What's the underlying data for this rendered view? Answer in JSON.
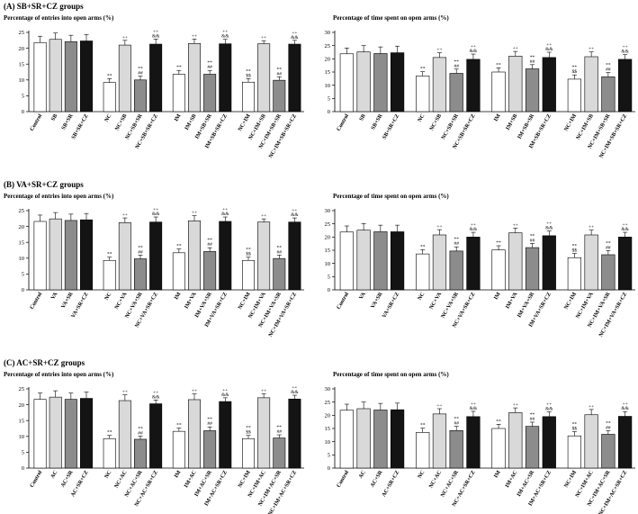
{
  "figure": {
    "sections": [
      {
        "heading": "(A) SB+SR+CZ groups",
        "charts": [
          {
            "title": "Percentage of entries into open arms (%)",
            "ylim": [
              0,
              25
            ],
            "yticks": [
              "0",
              "5",
              "10",
              "15",
              "20",
              "25"
            ],
            "categories": [
              "Control",
              "SB",
              "SB+SR",
              "SB+SR+CZ",
              "NC",
              "NC+SB",
              "NC+SB+SR",
              "NC+SB+SR+CZ",
              "IM",
              "IM+SB",
              "IM+SB+SR",
              "IM+SB+SR+CZ",
              "NC+IM",
              "NC+IM+SB",
              "NC+IM+SB+SR",
              "NC+IM+SB+SR+CZ"
            ],
            "values": [
              21.8,
              22.8,
              22.1,
              22.3,
              9.2,
              21.0,
              10.0,
              21.3,
              11.8,
              21.5,
              11.8,
              21.4,
              9.3,
              21.4,
              9.9,
              21.3
            ],
            "errors": [
              2.0,
              2.0,
              2.0,
              2.0,
              1.2,
              1.5,
              1.2,
              1.6,
              1.2,
              1.4,
              1.2,
              1.4,
              1.1,
              1.0,
              1.1,
              1.2
            ],
            "annotations": [
              "",
              "",
              "",
              "",
              "**",
              "++",
              "**\n##",
              "++\n&&",
              "**",
              "++",
              "**\n##",
              "++\n&&",
              "**\n$$",
              "++",
              "**\n##",
              "++\n&&"
            ]
          },
          {
            "title": "Percentage of time spent on open arms (%)",
            "ylim": [
              0,
              30
            ],
            "yticks": [
              "0",
              "5",
              "10",
              "15",
              "20",
              "25",
              "30"
            ],
            "categories": [
              "Control",
              "SB",
              "SB+SR",
              "SB+SR+CZ",
              "NC",
              "NC+SB",
              "NC+SB+SR",
              "NC+SB+SR+CZ",
              "IM",
              "IM+SB",
              "IM+SB+SR",
              "IM+SB+SR+CZ",
              "NC+IM",
              "NC+IM+SB",
              "NC+IM+SB+SR",
              "NC+IM+SB+SR+CZ"
            ],
            "values": [
              21.9,
              22.6,
              22.0,
              22.3,
              13.5,
              20.5,
              14.5,
              19.8,
              15.0,
              21.0,
              16.2,
              20.5,
              12.3,
              20.8,
              13.2,
              19.8
            ],
            "errors": [
              2.2,
              2.4,
              2.5,
              2.5,
              1.6,
              1.8,
              1.6,
              2.0,
              1.6,
              1.8,
              1.6,
              2.0,
              1.6,
              1.8,
              1.6,
              1.8
            ],
            "annotations": [
              "",
              "",
              "",
              "",
              "**",
              "++",
              "**\n##",
              "++\n&&",
              "**",
              "++",
              "**\n##",
              "++\n&&",
              "**\n$$",
              "++",
              "**\n##",
              "++\n&&"
            ]
          }
        ]
      },
      {
        "heading": "(B) VA+SR+CZ groups",
        "charts": [
          {
            "title": "Percentage of entries into open arms (%)",
            "ylim": [
              0,
              25
            ],
            "yticks": [
              "0",
              "5",
              "10",
              "15",
              "20",
              "25"
            ],
            "categories": [
              "Control",
              "VA",
              "VA+SR",
              "VA+SR+CZ",
              "NC",
              "NC+VA",
              "NC+VA+SR",
              "NC+VA+SR+CZ",
              "IM",
              "IM+VA",
              "IM+VA+SR",
              "IM+VA+SR+CZ",
              "NC+IM",
              "NC+IM+VA",
              "NC+IM+VA+SR",
              "NC+IM+VA+SR+CZ"
            ],
            "values": [
              21.6,
              22.4,
              21.9,
              22.1,
              9.3,
              21.2,
              9.8,
              21.4,
              11.7,
              21.8,
              12.1,
              21.6,
              9.3,
              21.4,
              9.9,
              21.4
            ],
            "errors": [
              2.0,
              2.0,
              2.0,
              2.0,
              1.0,
              1.5,
              1.2,
              1.6,
              1.2,
              1.6,
              1.2,
              1.4,
              1.0,
              1.0,
              1.1,
              1.3
            ],
            "annotations": [
              "",
              "",
              "",
              "",
              "**",
              "++",
              "**\n##",
              "++\n&&",
              "**",
              "++",
              "**\n##",
              "++\n&&",
              "**\n$$",
              "++",
              "**\n##",
              "++\n&&"
            ]
          },
          {
            "title": "Percentage of time spent on open arms (%)",
            "ylim": [
              0,
              30
            ],
            "yticks": [
              "0",
              "5",
              "10",
              "15",
              "20",
              "25",
              "30"
            ],
            "categories": [
              "Control",
              "VA",
              "VA+SR",
              "VA+SR+CZ",
              "NC",
              "NC+VA",
              "NC+VA+SR",
              "NC+VA+SR+CZ",
              "IM",
              "IM+VA",
              "IM+VA+SR",
              "IM+VA+SR+CZ",
              "NC+IM",
              "NC+IM+VA",
              "NC+IM+VA+SR",
              "NC+IM+VA+SR+CZ"
            ],
            "values": [
              21.9,
              22.6,
              22.0,
              22.0,
              13.6,
              20.8,
              14.7,
              20.0,
              15.1,
              21.6,
              16.0,
              20.5,
              12.2,
              20.8,
              13.3,
              20.0
            ],
            "errors": [
              2.3,
              2.5,
              2.5,
              2.5,
              1.6,
              2.0,
              1.6,
              1.8,
              1.6,
              1.8,
              1.6,
              1.8,
              1.6,
              1.8,
              1.6,
              1.8
            ],
            "annotations": [
              "",
              "",
              "",
              "",
              "**",
              "++",
              "**\n##",
              "++\n&&",
              "**",
              "++",
              "**\n##",
              "++\n&&",
              "**\n$$",
              "++",
              "**\n##",
              "++\n&&"
            ]
          }
        ]
      },
      {
        "heading": "(C) AC+SR+CZ groups",
        "charts": [
          {
            "title": "Percentage of entries into open arms (%)",
            "ylim": [
              0,
              25
            ],
            "yticks": [
              "0",
              "5",
              "10",
              "15",
              "20",
              "25"
            ],
            "categories": [
              "Control",
              "AC",
              "AC+SR",
              "AC+SR+CZ",
              "NC",
              "NC+AC",
              "NC+AC+SR",
              "NC+AC+SR+CZ",
              "IM",
              "IM+AC",
              "IM+AC+SR",
              "IM+AC+SR+CZ",
              "NC+IM",
              "NC+IM+AC",
              "NC+IM+AC+SR",
              "NC+IM+AC+SR+CZ"
            ],
            "values": [
              21.7,
              22.4,
              21.7,
              22.0,
              9.3,
              21.3,
              9.1,
              20.3,
              11.6,
              21.6,
              11.8,
              21.0,
              9.3,
              22.2,
              9.5,
              21.8
            ],
            "errors": [
              2.0,
              2.0,
              2.0,
              2.0,
              1.0,
              1.8,
              1.0,
              1.2,
              1.0,
              1.8,
              1.2,
              1.2,
              1.0,
              1.2,
              1.0,
              1.2
            ],
            "annotations": [
              "",
              "",
              "",
              "",
              "**",
              "++",
              "**\n##",
              "++\n&&",
              "**",
              "++",
              "**\n##",
              "++\n&&",
              "**\n$$",
              "++",
              "**\n##",
              "++\n&&"
            ]
          },
          {
            "title": "Percentage of time spent on open arms (%)",
            "ylim": [
              0,
              30
            ],
            "yticks": [
              "0",
              "5",
              "10",
              "15",
              "20",
              "25",
              "30"
            ],
            "categories": [
              "Control",
              "AC",
              "AC+SR",
              "AC+SR+CZ",
              "NC",
              "NC+AC",
              "NC+AC+SR",
              "NC+AC+SR+CZ",
              "IM",
              "IM+AC",
              "IM+AC+SR",
              "IM+AC+SR+CZ",
              "NC+IM",
              "NC+IM+AC",
              "NC+IM+AC+SR",
              "NC+IM+AC+SR+CZ"
            ],
            "values": [
              21.9,
              22.5,
              22.0,
              22.1,
              13.5,
              20.5,
              14.2,
              19.5,
              15.0,
              21.0,
              15.8,
              19.5,
              12.2,
              20.2,
              12.8,
              19.6
            ],
            "errors": [
              2.3,
              2.5,
              2.5,
              2.5,
              1.6,
              2.0,
              1.6,
              2.0,
              1.6,
              1.8,
              1.6,
              1.8,
              1.6,
              2.0,
              1.4,
              1.8
            ],
            "annotations": [
              "",
              "",
              "",
              "",
              "**",
              "++",
              "**\n##",
              "++\n&&",
              "**",
              "++",
              "**\n##",
              "++\n&&",
              "**\n$$",
              "++",
              "**\n##",
              "++\n&&"
            ]
          }
        ]
      }
    ],
    "bar_colors": [
      "#ffffff",
      "#d9d9d9",
      "#8c8c8c",
      "#141414"
    ]
  },
  "chart_data": [
    {
      "type": "bar",
      "title": "Percentage of entries into open arms (%)",
      "section": "(A) SB+SR+CZ groups",
      "ylim": [
        0,
        25
      ],
      "categories": [
        "Control",
        "SB",
        "SB+SR",
        "SB+SR+CZ",
        "NC",
        "NC+SB",
        "NC+SB+SR",
        "NC+SB+SR+CZ",
        "IM",
        "IM+SB",
        "IM+SB+SR",
        "IM+SB+SR+CZ",
        "NC+IM",
        "NC+IM+SB",
        "NC+IM+SB+SR",
        "NC+IM+SB+SR+CZ"
      ],
      "values": [
        21.8,
        22.8,
        22.1,
        22.3,
        9.2,
        21.0,
        10.0,
        21.3,
        11.8,
        21.5,
        11.8,
        21.4,
        9.3,
        21.4,
        9.9,
        21.3
      ]
    },
    {
      "type": "bar",
      "title": "Percentage of time spent on open arms (%)",
      "section": "(A) SB+SR+CZ groups",
      "ylim": [
        0,
        30
      ],
      "categories": [
        "Control",
        "SB",
        "SB+SR",
        "SB+SR+CZ",
        "NC",
        "NC+SB",
        "NC+SB+SR",
        "NC+SB+SR+CZ",
        "IM",
        "IM+SB",
        "IM+SB+SR",
        "IM+SB+SR+CZ",
        "NC+IM",
        "NC+IM+SB",
        "NC+IM+SB+SR",
        "NC+IM+SB+SR+CZ"
      ],
      "values": [
        21.9,
        22.6,
        22.0,
        22.3,
        13.5,
        20.5,
        14.5,
        19.8,
        15.0,
        21.0,
        16.2,
        20.5,
        12.3,
        20.8,
        13.2,
        19.8
      ]
    },
    {
      "type": "bar",
      "title": "Percentage of entries into open arms (%)",
      "section": "(B) VA+SR+CZ groups",
      "ylim": [
        0,
        25
      ],
      "categories": [
        "Control",
        "VA",
        "VA+SR",
        "VA+SR+CZ",
        "NC",
        "NC+VA",
        "NC+VA+SR",
        "NC+VA+SR+CZ",
        "IM",
        "IM+VA",
        "IM+VA+SR",
        "IM+VA+SR+CZ",
        "NC+IM",
        "NC+IM+VA",
        "NC+IM+VA+SR",
        "NC+IM+VA+SR+CZ"
      ],
      "values": [
        21.6,
        22.4,
        21.9,
        22.1,
        9.3,
        21.2,
        9.8,
        21.4,
        11.7,
        21.8,
        12.1,
        21.6,
        9.3,
        21.4,
        9.9,
        21.4
      ]
    },
    {
      "type": "bar",
      "title": "Percentage of time spent on open arms (%)",
      "section": "(B) VA+SR+CZ groups",
      "ylim": [
        0,
        30
      ],
      "categories": [
        "Control",
        "VA",
        "VA+SR",
        "VA+SR+CZ",
        "NC",
        "NC+VA",
        "NC+VA+SR",
        "NC+VA+SR+CZ",
        "IM",
        "IM+VA",
        "IM+VA+SR",
        "IM+VA+SR+CZ",
        "NC+IM",
        "NC+IM+VA",
        "NC+IM+VA+SR",
        "NC+IM+VA+SR+CZ"
      ],
      "values": [
        21.9,
        22.6,
        22.0,
        22.0,
        13.6,
        20.8,
        14.7,
        20.0,
        15.1,
        21.6,
        16.0,
        20.5,
        12.2,
        20.8,
        13.3,
        20.0
      ]
    },
    {
      "type": "bar",
      "title": "Percentage of entries into open arms (%)",
      "section": "(C) AC+SR+CZ groups",
      "ylim": [
        0,
        25
      ],
      "categories": [
        "Control",
        "AC",
        "AC+SR",
        "AC+SR+CZ",
        "NC",
        "NC+AC",
        "NC+AC+SR",
        "NC+AC+SR+CZ",
        "IM",
        "IM+AC",
        "IM+AC+SR",
        "IM+AC+SR+CZ",
        "NC+IM",
        "NC+IM+AC",
        "NC+IM+AC+SR",
        "NC+IM+AC+SR+CZ"
      ],
      "values": [
        21.7,
        22.4,
        21.7,
        22.0,
        9.3,
        21.3,
        9.1,
        20.3,
        11.6,
        21.6,
        11.8,
        21.0,
        9.3,
        22.2,
        9.5,
        21.8
      ]
    },
    {
      "type": "bar",
      "title": "Percentage of time spent on open arms (%)",
      "section": "(C) AC+SR+CZ groups",
      "ylim": [
        0,
        30
      ],
      "categories": [
        "Control",
        "AC",
        "AC+SR",
        "AC+SR+CZ",
        "NC",
        "NC+AC",
        "NC+AC+SR",
        "NC+AC+SR+CZ",
        "IM",
        "IM+AC",
        "IM+AC+SR",
        "IM+AC+SR+CZ",
        "NC+IM",
        "NC+IM+AC",
        "NC+IM+AC+SR",
        "NC+IM+AC+SR+CZ"
      ],
      "values": [
        21.9,
        22.5,
        22.0,
        22.1,
        13.5,
        20.5,
        14.2,
        19.5,
        15.0,
        21.0,
        15.8,
        19.5,
        12.2,
        20.2,
        12.8,
        19.6
      ]
    }
  ]
}
